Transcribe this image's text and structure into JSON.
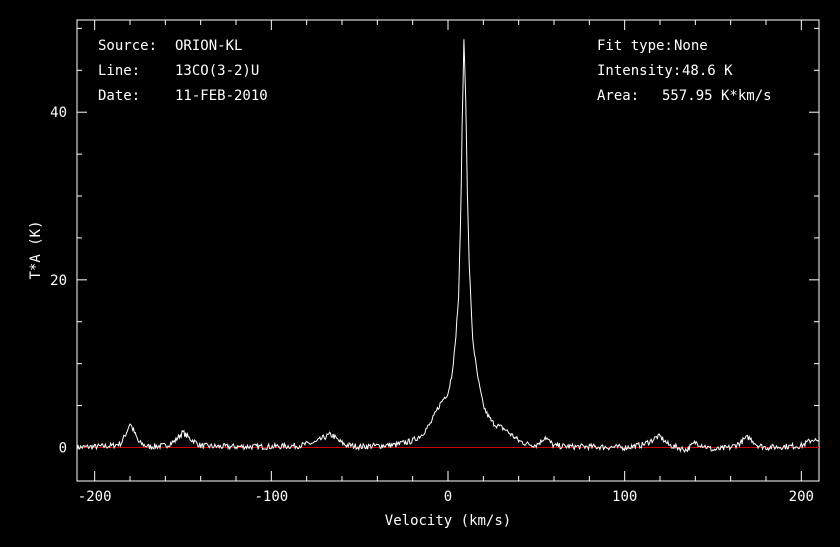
{
  "header": {
    "source_label": "Source:",
    "source_value": "ORION-KL",
    "line_label": "Line:",
    "line_value": "13CO(3-2)U",
    "date_label": "Date:",
    "date_value": "11-FEB-2010",
    "fit_label": "Fit type:",
    "fit_value": "None",
    "intensity_label": "Intensity:",
    "intensity_value": "48.6 K",
    "area_label": "Area:",
    "area_value": "557.95 K*km/s"
  },
  "colors": {
    "background": "#000000",
    "axes": "#ffffff",
    "spectrum": "#ffffff",
    "baseline": "#cc0000"
  },
  "chart_data": {
    "type": "line",
    "title": "",
    "xlabel": "Velocity (km/s)",
    "ylabel": "T*A (K)",
    "xlim": [
      -210,
      210
    ],
    "ylim": [
      -4,
      51
    ],
    "xticks": [
      -200,
      -100,
      0,
      100,
      200
    ],
    "xtick_labels": [
      "-200",
      "-100",
      "0",
      "100",
      "200"
    ],
    "yticks": [
      0,
      20,
      40
    ],
    "ytick_labels": [
      "0",
      "20",
      "40"
    ],
    "grid": false,
    "baseline": 0,
    "series": [
      {
        "x": [
          -210,
          -200,
          -190,
          -185,
          -182,
          -180,
          -178,
          -175,
          -170,
          -160,
          -155,
          -152,
          -150,
          -147,
          -140,
          -130,
          -110,
          -100,
          -85,
          -75,
          -70,
          -67,
          -65,
          -62,
          -58,
          -50,
          -40,
          -30,
          -20,
          -15,
          -10,
          -5,
          -2,
          0,
          2,
          4,
          6,
          7,
          8,
          9,
          10,
          11,
          12,
          13,
          14,
          16,
          18,
          20,
          22,
          25,
          28,
          32,
          36,
          40,
          45,
          50,
          53,
          55,
          57,
          60,
          70,
          80,
          100,
          110,
          115,
          118,
          120,
          122,
          125,
          130,
          135,
          140,
          145,
          150,
          160,
          165,
          168,
          170,
          172,
          175,
          180,
          190,
          200,
          205,
          207,
          210
        ],
        "y": [
          0,
          0.1,
          0.2,
          0.5,
          1.8,
          2.9,
          2.0,
          0.6,
          0.1,
          0.2,
          0.7,
          1.4,
          1.8,
          1.2,
          0.2,
          0.1,
          0.1,
          0.1,
          0.2,
          0.6,
          1.2,
          1.5,
          1.4,
          0.8,
          0.3,
          0.1,
          0.2,
          0.3,
          0.8,
          1.5,
          2.8,
          5.0,
          6.0,
          6.5,
          8.5,
          12.0,
          18.0,
          26.0,
          38.0,
          48.6,
          42.0,
          30.0,
          22.0,
          17.0,
          13.0,
          9.5,
          7.0,
          5.0,
          4.0,
          3.0,
          2.6,
          2.2,
          1.5,
          0.8,
          0.4,
          0.3,
          0.8,
          1.3,
          0.8,
          0.2,
          0.1,
          0.1,
          0,
          0.3,
          0.8,
          1.2,
          1.3,
          0.9,
          0.3,
          0,
          -0.3,
          0.6,
          0.2,
          -0.3,
          0,
          0.5,
          1.0,
          1.2,
          0.9,
          0.3,
          0,
          0.1,
          0.2,
          0.8,
          1.0,
          0.5
        ]
      }
    ]
  }
}
